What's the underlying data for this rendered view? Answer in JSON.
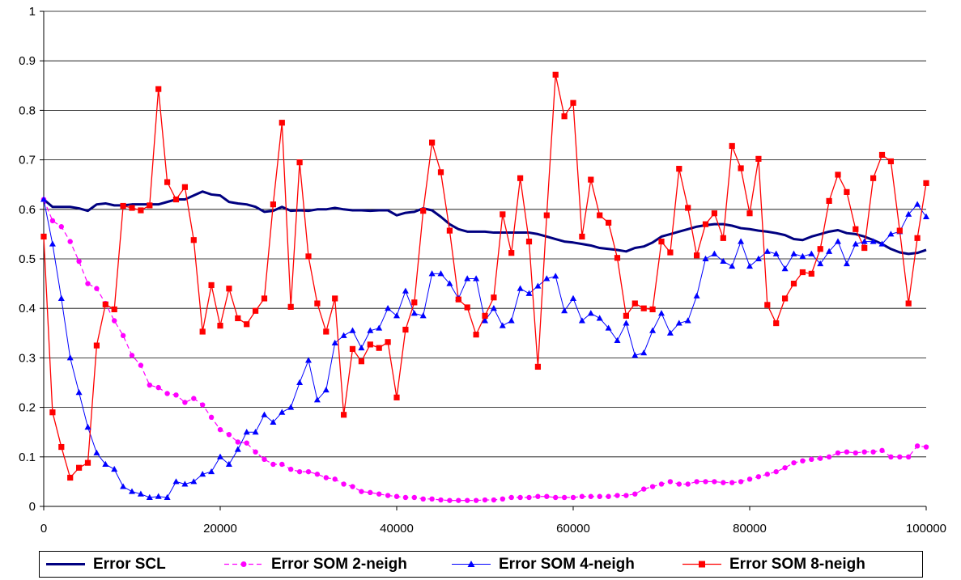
{
  "colors": {
    "scl": "#000080",
    "som2": "#ff00ff",
    "som4": "#0000ff",
    "som8": "#ff0000"
  },
  "chart_data": {
    "type": "line",
    "xlim": [
      0,
      100000
    ],
    "ylim": [
      0,
      1
    ],
    "x_ticks": [
      0,
      20000,
      40000,
      60000,
      80000,
      100000
    ],
    "y_ticks": [
      0,
      0.1,
      0.2,
      0.3,
      0.4,
      0.5,
      0.6,
      0.7,
      0.8,
      0.9,
      1
    ],
    "x_tick_labels": [
      "0",
      "20000",
      "40000",
      "60000",
      "80000",
      "100000"
    ],
    "y_tick_labels": [
      "0",
      "0.1",
      "0.2",
      "0.3",
      "0.4",
      "0.5",
      "0.6",
      "0.7",
      "0.8",
      "0.9",
      "1"
    ],
    "grid": "horizontal",
    "legend_position": "bottom",
    "series": [
      {
        "name": "Error SCL",
        "marker": "none",
        "style": "solid",
        "x_start": 0,
        "x_step": 1000,
        "values": [
          0.62,
          0.605,
          0.605,
          0.605,
          0.602,
          0.597,
          0.61,
          0.612,
          0.608,
          0.608,
          0.61,
          0.61,
          0.61,
          0.61,
          0.615,
          0.62,
          0.62,
          0.628,
          0.636,
          0.63,
          0.628,
          0.615,
          0.612,
          0.61,
          0.605,
          0.595,
          0.597,
          0.605,
          0.597,
          0.598,
          0.597,
          0.6,
          0.6,
          0.603,
          0.6,
          0.598,
          0.598,
          0.597,
          0.598,
          0.598,
          0.588,
          0.593,
          0.595,
          0.602,
          0.598,
          0.585,
          0.57,
          0.56,
          0.555,
          0.555,
          0.555,
          0.553,
          0.553,
          0.553,
          0.553,
          0.553,
          0.55,
          0.545,
          0.54,
          0.535,
          0.533,
          0.53,
          0.527,
          0.522,
          0.52,
          0.518,
          0.515,
          0.522,
          0.525,
          0.533,
          0.545,
          0.55,
          0.555,
          0.56,
          0.565,
          0.568,
          0.57,
          0.57,
          0.567,
          0.562,
          0.56,
          0.557,
          0.555,
          0.552,
          0.548,
          0.54,
          0.538,
          0.545,
          0.55,
          0.555,
          0.558,
          0.552,
          0.55,
          0.545,
          0.538,
          0.53,
          0.52,
          0.513,
          0.51,
          0.512,
          0.518
        ]
      },
      {
        "name": "Error SOM 2-neigh",
        "marker": "circle",
        "style": "dashed",
        "x_start": 0,
        "x_step": 1000,
        "values": [
          0.62,
          0.577,
          0.565,
          0.535,
          0.495,
          0.45,
          0.44,
          0.41,
          0.375,
          0.345,
          0.305,
          0.285,
          0.245,
          0.24,
          0.228,
          0.225,
          0.21,
          0.218,
          0.205,
          0.18,
          0.155,
          0.145,
          0.13,
          0.128,
          0.11,
          0.095,
          0.085,
          0.085,
          0.075,
          0.07,
          0.07,
          0.065,
          0.058,
          0.055,
          0.045,
          0.04,
          0.03,
          0.028,
          0.025,
          0.022,
          0.02,
          0.018,
          0.018,
          0.015,
          0.015,
          0.013,
          0.012,
          0.012,
          0.012,
          0.012,
          0.013,
          0.013,
          0.015,
          0.018,
          0.018,
          0.018,
          0.02,
          0.02,
          0.018,
          0.018,
          0.018,
          0.02,
          0.02,
          0.02,
          0.02,
          0.022,
          0.022,
          0.025,
          0.035,
          0.04,
          0.045,
          0.05,
          0.045,
          0.045,
          0.05,
          0.05,
          0.05,
          0.048,
          0.048,
          0.05,
          0.055,
          0.06,
          0.065,
          0.07,
          0.078,
          0.088,
          0.092,
          0.095,
          0.097,
          0.1,
          0.108,
          0.11,
          0.108,
          0.11,
          0.11,
          0.113,
          0.1,
          0.1,
          0.1,
          0.122,
          0.12
        ]
      },
      {
        "name": "Error SOM 4-neigh",
        "marker": "triangle",
        "style": "solid",
        "x_start": 0,
        "x_step": 1000,
        "values": [
          0.62,
          0.53,
          0.42,
          0.3,
          0.23,
          0.16,
          0.108,
          0.085,
          0.075,
          0.04,
          0.03,
          0.025,
          0.018,
          0.02,
          0.018,
          0.05,
          0.045,
          0.05,
          0.065,
          0.07,
          0.1,
          0.085,
          0.115,
          0.15,
          0.15,
          0.185,
          0.17,
          0.19,
          0.2,
          0.25,
          0.295,
          0.215,
          0.235,
          0.33,
          0.345,
          0.355,
          0.32,
          0.355,
          0.36,
          0.4,
          0.385,
          0.435,
          0.39,
          0.385,
          0.47,
          0.47,
          0.45,
          0.42,
          0.46,
          0.46,
          0.375,
          0.4,
          0.365,
          0.375,
          0.44,
          0.43,
          0.445,
          0.46,
          0.465,
          0.395,
          0.42,
          0.375,
          0.39,
          0.38,
          0.36,
          0.335,
          0.37,
          0.305,
          0.31,
          0.355,
          0.39,
          0.35,
          0.37,
          0.375,
          0.425,
          0.5,
          0.51,
          0.495,
          0.485,
          0.535,
          0.485,
          0.5,
          0.515,
          0.51,
          0.48,
          0.51,
          0.505,
          0.51,
          0.49,
          0.515,
          0.535,
          0.49,
          0.53,
          0.535,
          0.535,
          0.53,
          0.55,
          0.555,
          0.59,
          0.61,
          0.585
        ]
      },
      {
        "name": "Error SOM 8-neigh",
        "marker": "square",
        "style": "solid",
        "x_start": 0,
        "x_step": 1000,
        "values": [
          0.545,
          0.19,
          0.12,
          0.058,
          0.078,
          0.088,
          0.325,
          0.408,
          0.398,
          0.607,
          0.603,
          0.598,
          0.608,
          0.843,
          0.655,
          0.62,
          0.645,
          0.538,
          0.353,
          0.447,
          0.365,
          0.44,
          0.38,
          0.368,
          0.395,
          0.42,
          0.61,
          0.775,
          0.403,
          0.695,
          0.505,
          0.41,
          0.353,
          0.42,
          0.185,
          0.318,
          0.293,
          0.327,
          0.32,
          0.332,
          0.22,
          0.357,
          0.412,
          0.597,
          0.735,
          0.675,
          0.557,
          0.418,
          0.402,
          0.347,
          0.385,
          0.422,
          0.59,
          0.512,
          0.663,
          0.535,
          0.282,
          0.588,
          0.872,
          0.788,
          0.815,
          0.545,
          0.66,
          0.588,
          0.573,
          0.502,
          0.385,
          0.41,
          0.4,
          0.398,
          0.535,
          0.513,
          0.682,
          0.603,
          0.507,
          0.57,
          0.592,
          0.542,
          0.728,
          0.683,
          0.592,
          0.702,
          0.407,
          0.37,
          0.42,
          0.45,
          0.473,
          0.47,
          0.52,
          0.617,
          0.67,
          0.635,
          0.56,
          0.522,
          0.663,
          0.71,
          0.697,
          0.557,
          0.41,
          0.542,
          0.653
        ]
      }
    ]
  }
}
